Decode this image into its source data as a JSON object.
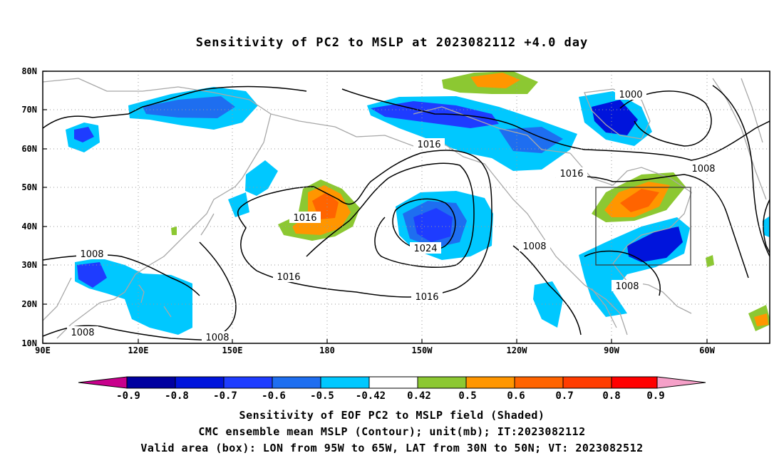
{
  "title": "Sensitivity of PC2 to MSLP at 2023082112 +4.0 day",
  "map": {
    "lon_labels": [
      "90E",
      "120E",
      "150E",
      "180",
      "150W",
      "120W",
      "90W",
      "60W"
    ],
    "lat_labels": [
      "10N",
      "20N",
      "30N",
      "40N",
      "50N",
      "60N",
      "70N",
      "80N"
    ],
    "isobar_labels": [
      "1000",
      "1008",
      "1008",
      "1008",
      "1008",
      "1008",
      "1008",
      "1016",
      "1016",
      "1016",
      "1016",
      "1016",
      "1024"
    ]
  },
  "colorbar": {
    "tick_labels": [
      "-0.9",
      "-0.8",
      "-0.7",
      "-0.6",
      "-0.5",
      "-0.42",
      "0.42",
      "0.5",
      "0.6",
      "0.7",
      "0.8",
      "0.9"
    ],
    "colors": [
      "#c8008c",
      "#0000a0",
      "#0014dc",
      "#1e3cff",
      "#1e6ef0",
      "#2896f5",
      "#00c8ff",
      "#ffffff",
      "#8cc832",
      "#ff9600",
      "#ff6400",
      "#ff3c00",
      "#ff0000",
      "#f5a0c8"
    ]
  },
  "captions": {
    "line1": "Sensitivity of EOF PC2 to MSLP field (Shaded)",
    "line2": "CMC ensemble mean MSLP (Contour); unit(mb); IT:2023082112",
    "line3": "Valid area (box): LON from 95W to 65W, LAT from 30N to 50N; VT: 2023082512"
  }
}
